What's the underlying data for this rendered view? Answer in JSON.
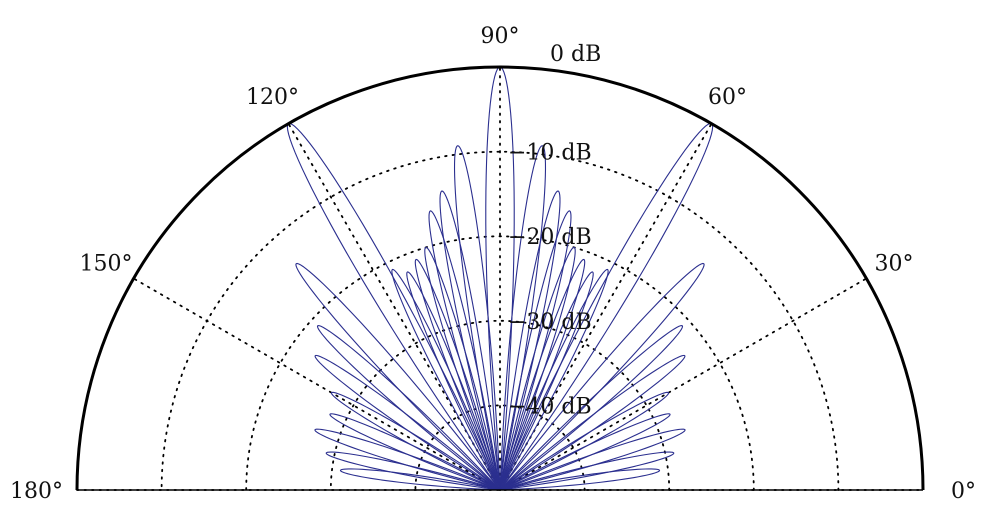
{
  "chart_data": {
    "type": "polar",
    "title": "",
    "theta_range_deg": [
      0,
      180
    ],
    "r_range_db": [
      -50,
      0
    ],
    "series_color": "#2b2f8f",
    "grid": true,
    "angle_ticks": [
      {
        "deg": 0,
        "label": "0°"
      },
      {
        "deg": 30,
        "label": "30°"
      },
      {
        "deg": 60,
        "label": "60°"
      },
      {
        "deg": 90,
        "label": "90°"
      },
      {
        "deg": 120,
        "label": "120°"
      },
      {
        "deg": 150,
        "label": "150°"
      },
      {
        "deg": 180,
        "label": "180°"
      }
    ],
    "radial_ticks": [
      {
        "db": 0,
        "label": "0 dB"
      },
      {
        "db": -10,
        "label": "−10 dB"
      },
      {
        "db": -20,
        "label": "−20 dB"
      },
      {
        "db": -30,
        "label": "−30 dB"
      },
      {
        "db": -40,
        "label": "−40 dB"
      }
    ],
    "lobes_deg_db": [
      [
        90,
        0
      ],
      [
        60,
        0
      ],
      [
        120,
        0
      ],
      [
        83,
        -9
      ],
      [
        97,
        -9
      ],
      [
        79,
        -14
      ],
      [
        101,
        -14
      ],
      [
        76,
        -16
      ],
      [
        104,
        -16
      ],
      [
        73,
        -20
      ],
      [
        107,
        -20
      ],
      [
        70,
        -21
      ],
      [
        110,
        -21
      ],
      [
        67,
        -22
      ],
      [
        113,
        -22
      ],
      [
        64,
        -21
      ],
      [
        116,
        -21
      ],
      [
        48,
        -14
      ],
      [
        132,
        -14
      ],
      [
        42,
        -21
      ],
      [
        138,
        -21
      ],
      [
        36,
        -23
      ],
      [
        144,
        -23
      ],
      [
        30,
        -27
      ],
      [
        150,
        -27
      ],
      [
        24,
        -28
      ],
      [
        156,
        -28
      ],
      [
        18,
        -27
      ],
      [
        162,
        -27
      ],
      [
        12,
        -29
      ],
      [
        168,
        -29
      ],
      [
        7,
        -31
      ],
      [
        173,
        -31
      ]
    ]
  }
}
